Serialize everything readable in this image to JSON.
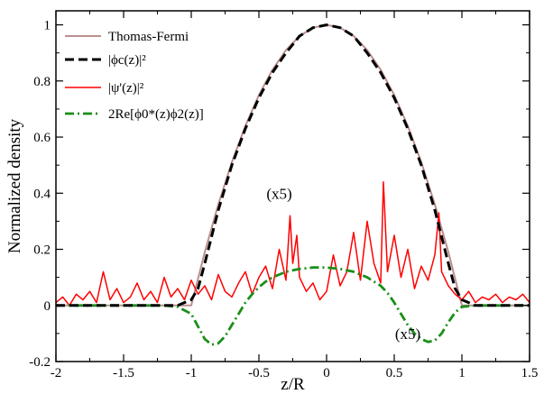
{
  "chart_data": {
    "type": "line",
    "xlabel": "z/R",
    "ylabel": "Normalized density",
    "xlim": [
      -2,
      1.5
    ],
    "ylim": [
      -0.2,
      1.05
    ],
    "xticks": [
      "-2",
      "-1.5",
      "-1",
      "-0.5",
      "0",
      "0.5",
      "1",
      "1.5"
    ],
    "yticks": [
      "-0.2",
      "0",
      "0.2",
      "0.4",
      "0.6",
      "0.8",
      "1"
    ],
    "legend_position": "top-left",
    "annotations": [
      {
        "text": "(x5)",
        "x": -0.35,
        "y": 0.38
      },
      {
        "text": "(x5)",
        "x": 0.6,
        "y": -0.12
      }
    ],
    "series": [
      {
        "name": "Thomas-Fermi",
        "color": "#bc8f8f",
        "style": "solid",
        "x": [
          -2.0,
          -1.0,
          -0.9,
          -0.8,
          -0.7,
          -0.6,
          -0.5,
          -0.4,
          -0.3,
          -0.2,
          -0.1,
          0.0,
          0.1,
          0.2,
          0.3,
          0.4,
          0.5,
          0.6,
          0.7,
          0.8,
          0.9,
          1.0,
          1.5
        ],
        "y": [
          0,
          0,
          0.19,
          0.36,
          0.51,
          0.64,
          0.75,
          0.84,
          0.91,
          0.96,
          0.99,
          1.0,
          0.99,
          0.96,
          0.91,
          0.84,
          0.75,
          0.64,
          0.51,
          0.36,
          0.19,
          0,
          0
        ]
      },
      {
        "name": "|ϕc(z)|²",
        "color": "#000000",
        "style": "dashed",
        "x": [
          -2.0,
          -1.1,
          -1.0,
          -0.95,
          -0.9,
          -0.8,
          -0.7,
          -0.6,
          -0.5,
          -0.4,
          -0.3,
          -0.2,
          -0.1,
          0.0,
          0.1,
          0.2,
          0.3,
          0.4,
          0.5,
          0.6,
          0.7,
          0.8,
          0.9,
          0.95,
          1.0,
          1.1,
          1.5
        ],
        "y": [
          0,
          0,
          0.02,
          0.06,
          0.15,
          0.34,
          0.5,
          0.63,
          0.74,
          0.83,
          0.9,
          0.96,
          0.99,
          1.0,
          0.99,
          0.96,
          0.9,
          0.83,
          0.74,
          0.63,
          0.5,
          0.34,
          0.15,
          0.06,
          0.02,
          0,
          0
        ]
      },
      {
        "name": "|ψ'(z)|²",
        "color": "#ff0000",
        "style": "solid",
        "x": [
          -2.0,
          -1.95,
          -1.9,
          -1.85,
          -1.8,
          -1.75,
          -1.7,
          -1.65,
          -1.6,
          -1.55,
          -1.5,
          -1.45,
          -1.4,
          -1.35,
          -1.3,
          -1.25,
          -1.2,
          -1.15,
          -1.1,
          -1.05,
          -1.0,
          -0.95,
          -0.9,
          -0.85,
          -0.8,
          -0.75,
          -0.7,
          -0.65,
          -0.6,
          -0.55,
          -0.5,
          -0.45,
          -0.4,
          -0.35,
          -0.3,
          -0.27,
          -0.25,
          -0.22,
          -0.2,
          -0.15,
          -0.1,
          -0.05,
          0.0,
          0.05,
          0.1,
          0.15,
          0.2,
          0.25,
          0.3,
          0.35,
          0.4,
          0.42,
          0.45,
          0.5,
          0.55,
          0.6,
          0.65,
          0.7,
          0.75,
          0.8,
          0.83,
          0.85,
          0.9,
          0.95,
          1.0,
          1.05,
          1.1,
          1.15,
          1.2,
          1.25,
          1.3,
          1.35,
          1.4,
          1.45,
          1.5
        ],
        "y": [
          0.01,
          0.03,
          0.0,
          0.04,
          0.02,
          0.05,
          0.01,
          0.12,
          0.02,
          0.06,
          0.01,
          0.03,
          0.08,
          0.02,
          0.05,
          0.01,
          0.1,
          0.03,
          0.06,
          0.02,
          0.09,
          0.04,
          0.07,
          0.02,
          0.11,
          0.05,
          0.03,
          0.08,
          0.12,
          0.04,
          0.1,
          0.14,
          0.06,
          0.2,
          0.09,
          0.32,
          0.15,
          0.25,
          0.1,
          0.05,
          0.08,
          0.02,
          0.05,
          0.18,
          0.07,
          0.12,
          0.26,
          0.09,
          0.3,
          0.15,
          0.08,
          0.44,
          0.12,
          0.25,
          0.1,
          0.2,
          0.06,
          0.14,
          0.09,
          0.18,
          0.33,
          0.12,
          0.07,
          0.04,
          0.02,
          0.05,
          0.01,
          0.03,
          0.02,
          0.04,
          0.01,
          0.03,
          0.02,
          0.04,
          0.01
        ]
      },
      {
        "name": "2Re[ϕ0*(z)ϕ2(z)]",
        "color": "#1a8f1a",
        "style": "dashdot",
        "x": [
          -2.0,
          -1.2,
          -1.1,
          -1.0,
          -0.95,
          -0.9,
          -0.85,
          -0.8,
          -0.75,
          -0.7,
          -0.65,
          -0.6,
          -0.55,
          -0.5,
          -0.45,
          -0.4,
          -0.3,
          -0.2,
          -0.1,
          0.0,
          0.1,
          0.2,
          0.3,
          0.4,
          0.45,
          0.5,
          0.55,
          0.6,
          0.65,
          0.7,
          0.75,
          0.8,
          0.85,
          0.9,
          0.95,
          1.0,
          1.1,
          1.5
        ],
        "y": [
          0,
          0,
          -0.005,
          -0.03,
          -0.075,
          -0.12,
          -0.14,
          -0.135,
          -0.11,
          -0.07,
          -0.03,
          0.01,
          0.04,
          0.065,
          0.085,
          0.1,
          0.12,
          0.13,
          0.135,
          0.135,
          0.13,
          0.12,
          0.1,
          0.07,
          0.045,
          0.01,
          -0.03,
          -0.07,
          -0.1,
          -0.12,
          -0.13,
          -0.125,
          -0.1,
          -0.06,
          -0.025,
          -0.005,
          0,
          0
        ]
      }
    ]
  }
}
